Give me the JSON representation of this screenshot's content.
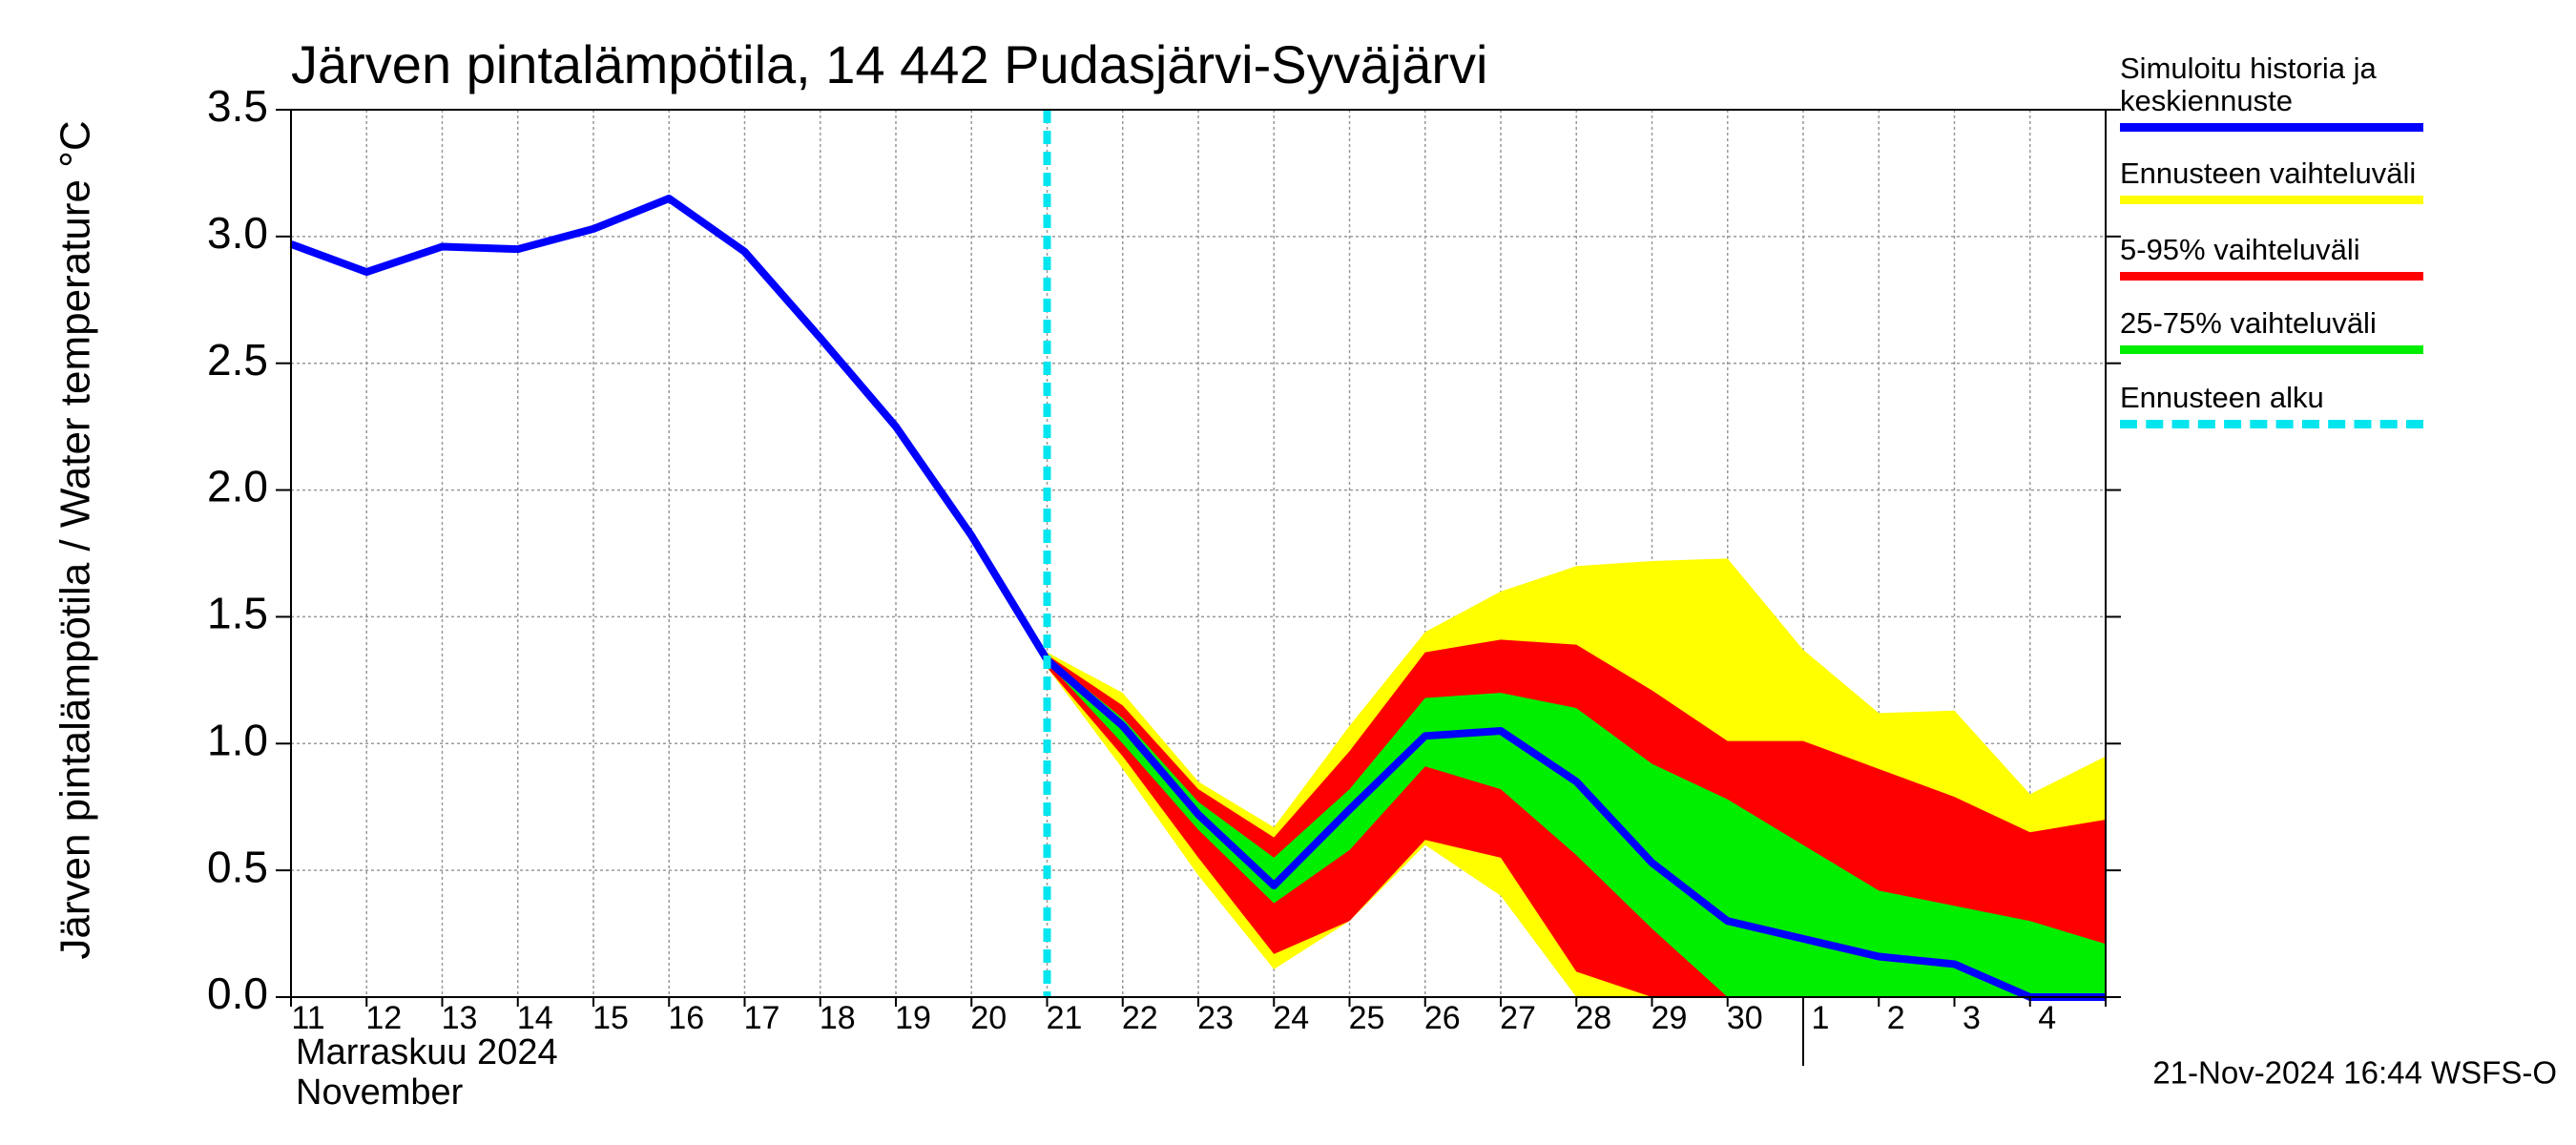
{
  "chart_data": {
    "type": "line",
    "title": "Järven pintalämpötila, 14 442 Pudasjärvi-Syväjärvi",
    "y_label": "Järven pintalämpötila / Water temperature °C",
    "x_label": [
      "Marraskuu 2024",
      "November"
    ],
    "footer": "21-Nov-2024 16:44 WSFS-O",
    "categories": [
      "11",
      "12",
      "13",
      "14",
      "15",
      "16",
      "17",
      "18",
      "19",
      "20",
      "21",
      "22",
      "23",
      "24",
      "25",
      "26",
      "27",
      "28",
      "29",
      "30",
      "1",
      "2",
      "3",
      "4",
      null
    ],
    "ylim": [
      0,
      3.5
    ],
    "yticks": [
      {
        "value": 0,
        "label": "0.0"
      },
      0.5,
      {
        "value": 1,
        "label": "1.0"
      },
      1.5,
      {
        "value": 2,
        "label": "2.0"
      },
      2.5,
      {
        "value": 3,
        "label": "3.0"
      },
      3.5
    ],
    "grid": true,
    "bands": [
      {
        "name": "Ennusteen vaihteluväli",
        "color": "#ffff00",
        "upper": [
          null,
          null,
          null,
          null,
          null,
          null,
          null,
          null,
          null,
          null,
          1.36,
          1.2,
          0.85,
          0.67,
          1.07,
          1.44,
          1.6,
          1.7,
          1.72,
          1.73,
          1.37,
          1.12,
          1.13,
          0.8,
          0.95
        ],
        "lower": [
          null,
          null,
          null,
          null,
          null,
          null,
          null,
          null,
          null,
          null,
          1.3,
          0.9,
          0.48,
          0.11,
          0.3,
          0.6,
          0.4,
          0,
          0,
          0,
          0,
          0,
          0,
          0,
          0
        ]
      },
      {
        "name": "5-95% vaihteluväli",
        "color": "#ff0000",
        "upper": [
          null,
          null,
          null,
          null,
          null,
          null,
          null,
          null,
          null,
          null,
          1.35,
          1.15,
          0.82,
          0.63,
          0.97,
          1.36,
          1.41,
          1.39,
          1.21,
          1.01,
          1.01,
          0.9,
          0.79,
          0.65,
          0.7
        ],
        "lower": [
          null,
          null,
          null,
          null,
          null,
          null,
          null,
          null,
          null,
          null,
          1.3,
          0.95,
          0.55,
          0.17,
          0.3,
          0.62,
          0.55,
          0.1,
          0,
          0,
          0,
          0,
          0,
          0,
          0
        ]
      },
      {
        "name": "25-75% vaihteluväli",
        "color": "#00ee00",
        "upper": [
          null,
          null,
          null,
          null,
          null,
          null,
          null,
          null,
          null,
          null,
          1.34,
          1.1,
          0.77,
          0.55,
          0.82,
          1.18,
          1.2,
          1.14,
          0.92,
          0.78,
          0.6,
          0.42,
          0.36,
          0.3,
          0.21
        ],
        "lower": [
          null,
          null,
          null,
          null,
          null,
          null,
          null,
          null,
          null,
          null,
          1.32,
          1.0,
          0.66,
          0.37,
          0.58,
          0.91,
          0.82,
          0.56,
          0.27,
          0,
          0,
          0,
          0,
          0,
          0
        ]
      }
    ],
    "series": [
      {
        "name": "Simuloitu historia ja keskiennuste",
        "color": "#0000ff",
        "values": [
          2.97,
          2.86,
          2.96,
          2.95,
          3.03,
          3.15,
          2.94,
          2.6,
          2.25,
          1.82,
          1.33,
          1.07,
          0.72,
          0.44,
          0.74,
          1.03,
          1.05,
          0.85,
          0.53,
          0.3,
          0.23,
          0.16,
          0.13,
          0,
          0
        ]
      }
    ],
    "forecast_start": {
      "name": "Ennusteen alku",
      "color": "#00e5ee",
      "x": "21"
    }
  }
}
